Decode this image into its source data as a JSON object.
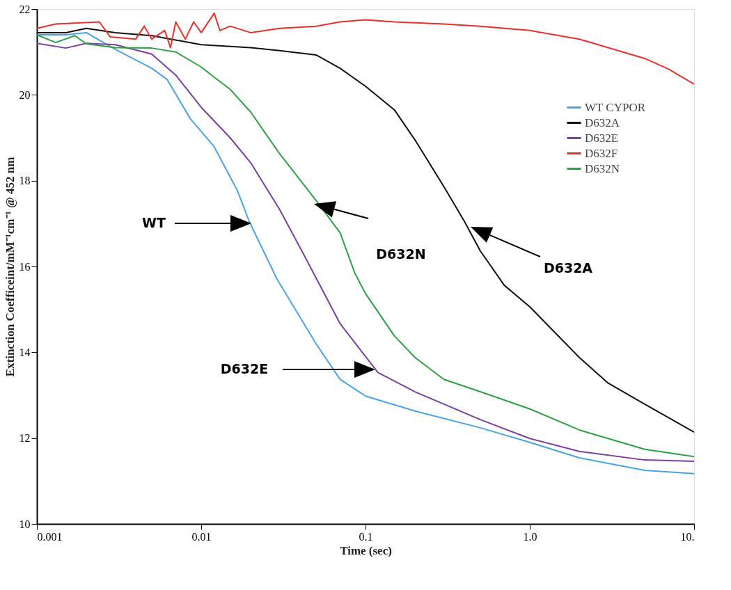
{
  "chart_data": {
    "type": "line",
    "xlabel": "Time (sec)",
    "ylabel": "Extinction Coefficeint/mM⁻¹cm⁻¹ @ 452 nm",
    "log": "x",
    "xlim": [
      0.001,
      10
    ],
    "xticks": [
      0.001,
      0.01,
      0.1,
      {
        "value": 1,
        "label": "1.0"
      },
      {
        "value": 10,
        "label": "10."
      }
    ],
    "ylim": [
      10,
      22
    ],
    "yticks": [
      10,
      12,
      14,
      16,
      18,
      20,
      22
    ],
    "grid": false,
    "legend": "right",
    "marker": "none",
    "line_style": "solid",
    "series": [
      {
        "name": "WT CYPOR",
        "color": "#4ba3e0",
        "x": [
          0.001,
          0.0015,
          0.002,
          0.003,
          0.005,
          0.0062,
          0.0086,
          0.012,
          0.0166,
          0.0196,
          0.029,
          0.05,
          0.07,
          0.1,
          0.2,
          0.5,
          1,
          2,
          5,
          10
        ],
        "values": [
          21.4,
          21.4,
          21.45,
          21.06,
          20.62,
          20.36,
          19.44,
          18.79,
          17.77,
          17.05,
          15.7,
          14.2,
          13.37,
          12.98,
          12.63,
          12.24,
          11.9,
          11.54,
          11.25,
          11.17
        ]
      },
      {
        "name": "D632A",
        "color": "#111111",
        "x": [
          0.001,
          0.0015,
          0.002,
          0.003,
          0.005,
          0.01,
          0.02,
          0.03,
          0.05,
          0.07,
          0.1,
          0.15,
          0.2,
          0.3,
          0.4,
          0.5,
          0.7,
          1,
          2,
          3,
          5,
          10
        ],
        "values": [
          21.45,
          21.45,
          21.55,
          21.45,
          21.38,
          21.17,
          21.1,
          21.03,
          20.93,
          20.62,
          20.2,
          19.65,
          18.95,
          17.86,
          17.05,
          16.36,
          15.56,
          15.06,
          13.88,
          13.28,
          12.79,
          12.14
        ]
      },
      {
        "name": "D632E",
        "color": "#7b3fa0",
        "x": [
          0.001,
          0.0015,
          0.002,
          0.003,
          0.005,
          0.007,
          0.01,
          0.015,
          0.02,
          0.03,
          0.041,
          0.07,
          0.119,
          0.2,
          0.5,
          1,
          2,
          5,
          10
        ],
        "values": [
          21.2,
          21.09,
          21.2,
          21.17,
          20.95,
          20.46,
          19.71,
          19.0,
          18.42,
          17.33,
          16.36,
          14.67,
          13.53,
          13.08,
          12.43,
          11.99,
          11.69,
          11.49,
          11.46
        ]
      },
      {
        "name": "D632F",
        "color": "#e8302a",
        "x": [
          0.001,
          0.0013,
          0.0024,
          0.0028,
          0.004,
          0.0045,
          0.005,
          0.006,
          0.0065,
          0.007,
          0.008,
          0.009,
          0.01,
          0.012,
          0.013,
          0.015,
          0.02,
          0.03,
          0.05,
          0.07,
          0.1,
          0.15,
          0.3,
          0.5,
          1,
          2,
          3,
          5,
          7,
          10
        ],
        "values": [
          21.55,
          21.65,
          21.7,
          21.35,
          21.3,
          21.6,
          21.3,
          21.5,
          21.1,
          21.7,
          21.3,
          21.7,
          21.45,
          21.9,
          21.5,
          21.6,
          21.45,
          21.55,
          21.6,
          21.7,
          21.75,
          21.7,
          21.65,
          21.6,
          21.5,
          21.3,
          21.1,
          20.85,
          20.6,
          20.25
        ]
      },
      {
        "name": "D632N",
        "color": "#2ea043",
        "x": [
          0.001,
          0.0013,
          0.0017,
          0.002,
          0.003,
          0.005,
          0.007,
          0.01,
          0.012,
          0.015,
          0.02,
          0.03,
          0.05,
          0.07,
          0.086,
          0.1,
          0.15,
          0.2,
          0.3,
          0.5,
          1,
          2,
          5,
          10
        ],
        "values": [
          21.4,
          21.22,
          21.38,
          21.19,
          21.1,
          21.09,
          21.0,
          20.65,
          20.41,
          20.13,
          19.6,
          18.63,
          17.54,
          16.79,
          15.85,
          15.37,
          14.38,
          13.88,
          13.37,
          13.08,
          12.68,
          12.19,
          11.74,
          11.57
        ]
      }
    ],
    "annotations": [
      "WT",
      "D632N",
      "D632A",
      "D632E"
    ]
  }
}
